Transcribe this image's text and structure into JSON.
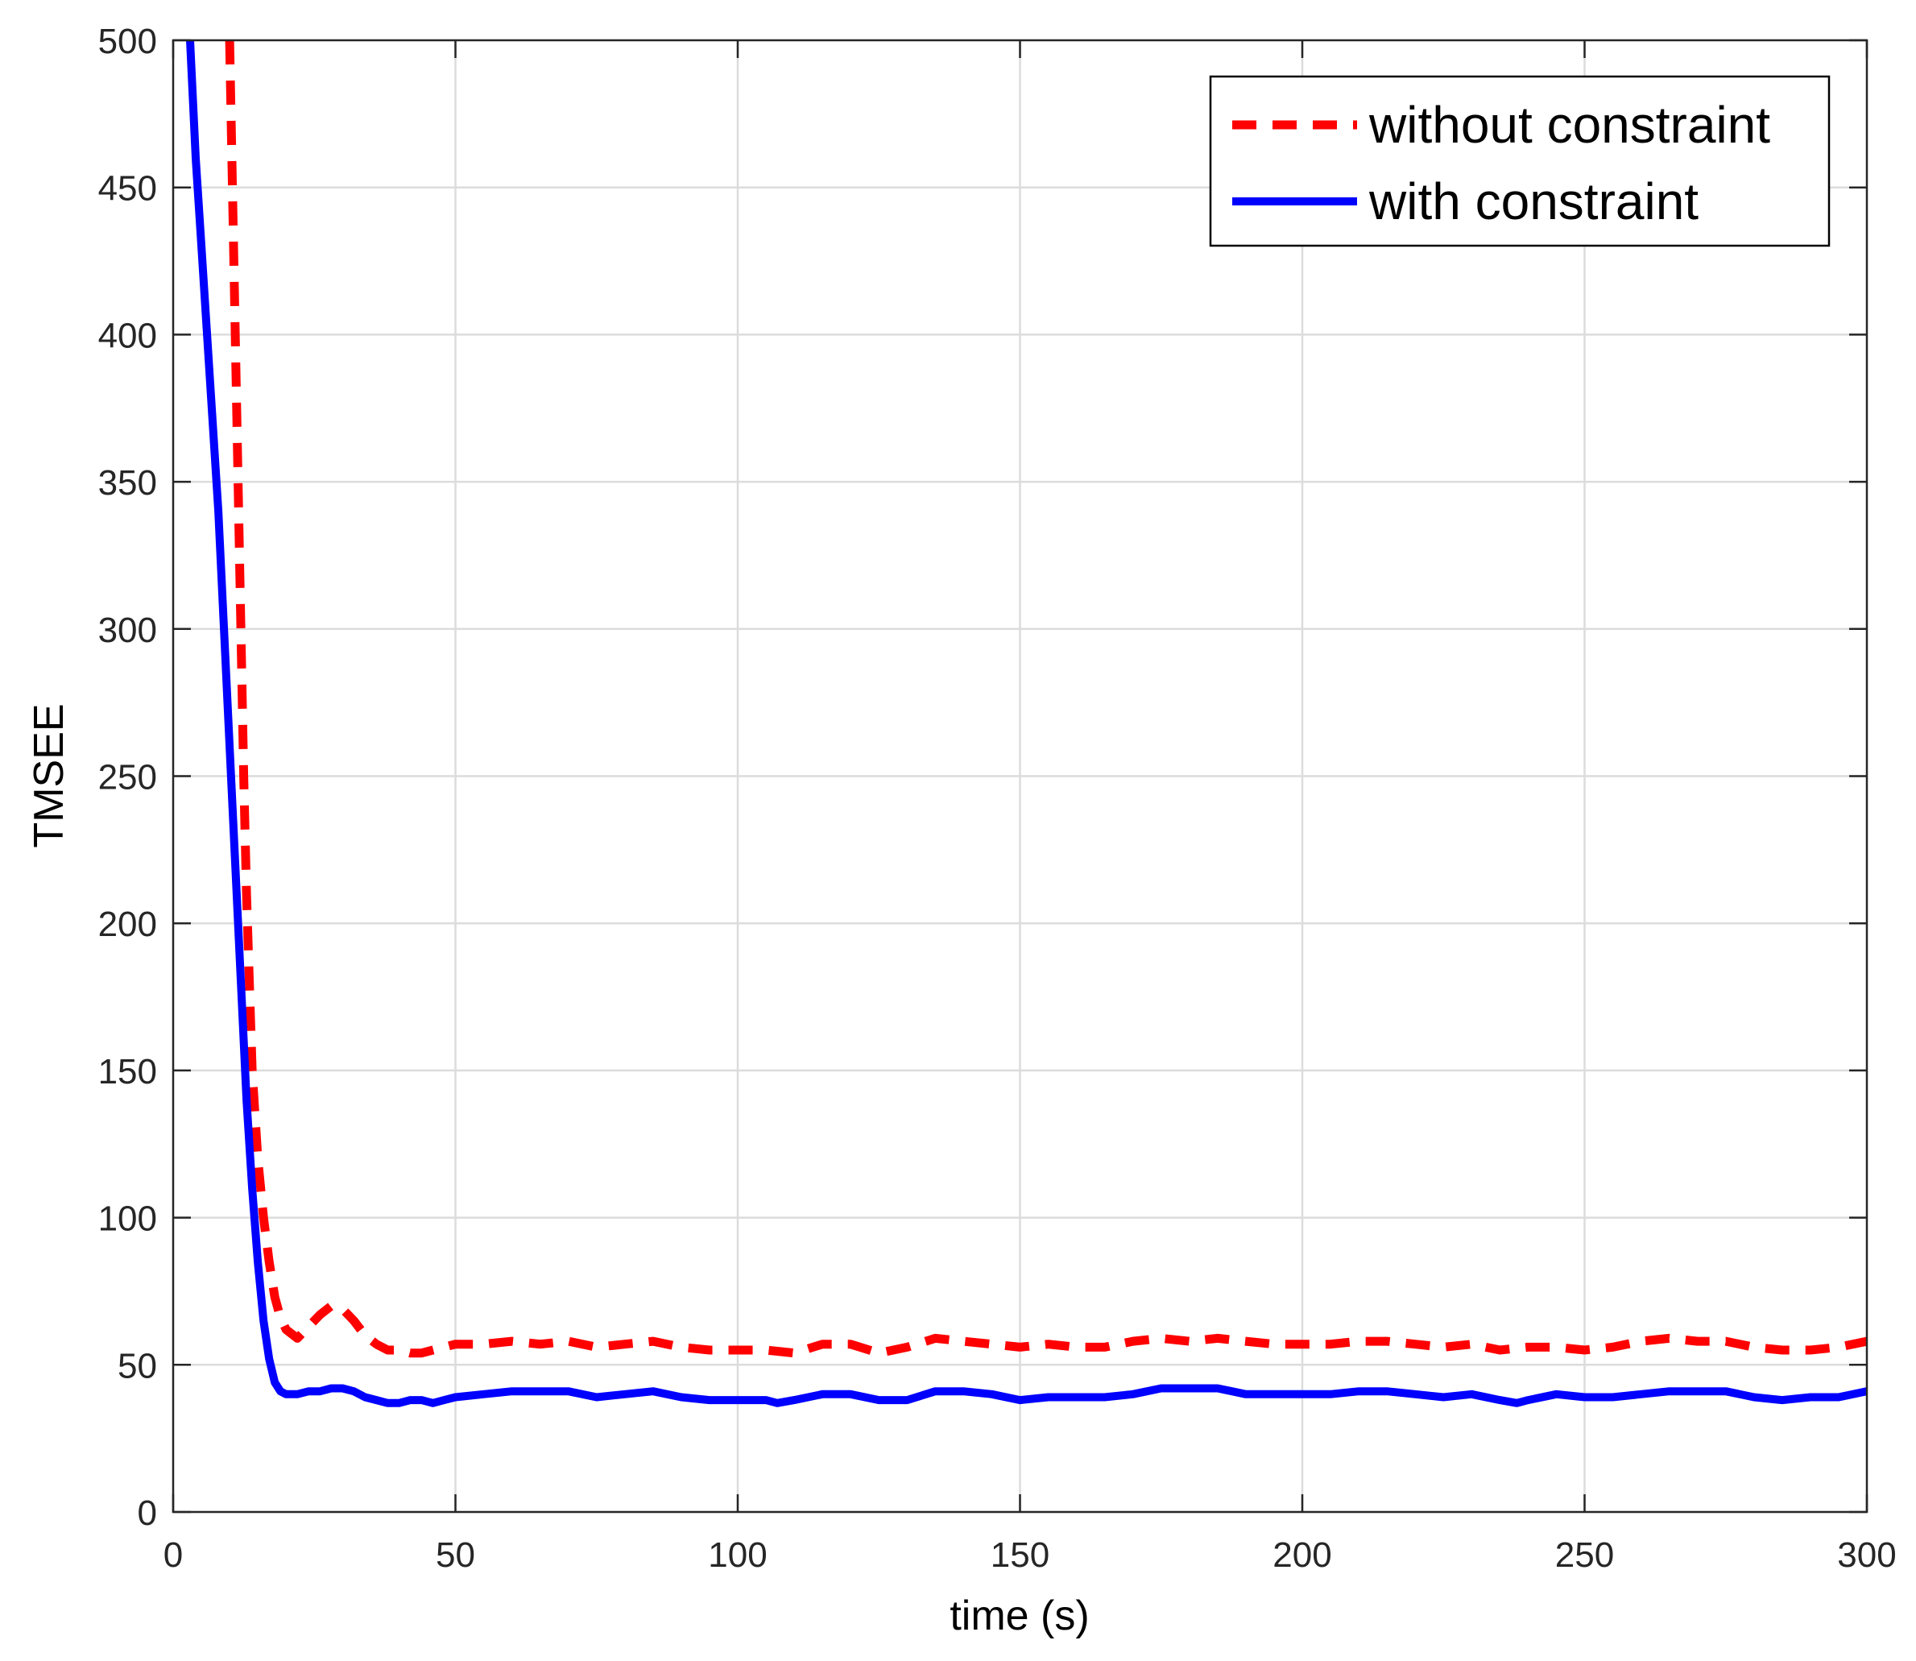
{
  "chart_data": {
    "type": "line",
    "title": "",
    "xlabel": "time (s)",
    "ylabel": "TMSEE",
    "xlim": [
      0,
      300
    ],
    "ylim": [
      0,
      500
    ],
    "xticks": [
      0,
      50,
      100,
      150,
      200,
      250,
      300
    ],
    "yticks": [
      0,
      50,
      100,
      150,
      200,
      250,
      300,
      350,
      400,
      450,
      500
    ],
    "xtick_labels": [
      "0",
      "50",
      "100",
      "150",
      "200",
      "250",
      "300"
    ],
    "ytick_labels": [
      "0",
      "50",
      "100",
      "150",
      "200",
      "250",
      "300",
      "350",
      "400",
      "450",
      "500"
    ],
    "grid": true,
    "legend_position": "top-right",
    "series": [
      {
        "name": "without constraint",
        "color": "#ff0000",
        "style": "dashed",
        "x": [
          10,
          10.5,
          11,
          11.5,
          12,
          12.5,
          13,
          13.5,
          14,
          15,
          16,
          17,
          18,
          19,
          20,
          22,
          24,
          26,
          28,
          30,
          32,
          34,
          36,
          38,
          40,
          42,
          44,
          46,
          48,
          50,
          55,
          60,
          65,
          70,
          75,
          80,
          85,
          90,
          95,
          100,
          105,
          110,
          115,
          120,
          125,
          130,
          135,
          140,
          145,
          150,
          155,
          160,
          165,
          170,
          175,
          180,
          185,
          190,
          195,
          200,
          205,
          210,
          215,
          220,
          225,
          230,
          235,
          240,
          245,
          250,
          255,
          260,
          265,
          270,
          275,
          280,
          285,
          290,
          295,
          300
        ],
        "values": [
          500,
          450,
          400,
          350,
          300,
          250,
          210,
          180,
          150,
          120,
          100,
          85,
          73,
          66,
          62,
          59,
          63,
          67,
          70,
          69,
          65,
          60,
          57,
          55,
          55,
          54,
          54,
          55,
          56,
          57,
          57,
          58,
          57,
          58,
          56,
          57,
          58,
          56,
          55,
          55,
          55,
          54,
          57,
          57,
          54,
          56,
          59,
          58,
          57,
          56,
          57,
          56,
          56,
          58,
          59,
          58,
          59,
          58,
          57,
          57,
          57,
          58,
          58,
          57,
          56,
          57,
          55,
          56,
          56,
          55,
          56,
          58,
          59,
          58,
          58,
          56,
          55,
          55,
          56,
          58
        ]
      },
      {
        "name": "with constraint",
        "color": "#0000ff",
        "style": "solid",
        "x": [
          3,
          4,
          5,
          6,
          7,
          8,
          9,
          10,
          11,
          12,
          13,
          14,
          15,
          16,
          17,
          18,
          19,
          20,
          22,
          24,
          26,
          28,
          30,
          32,
          34,
          36,
          38,
          40,
          42,
          44,
          46,
          48,
          50,
          55,
          60,
          65,
          70,
          75,
          80,
          85,
          90,
          95,
          100,
          105,
          107,
          110,
          115,
          120,
          125,
          130,
          135,
          140,
          145,
          150,
          155,
          160,
          165,
          170,
          175,
          180,
          185,
          190,
          195,
          200,
          205,
          210,
          215,
          220,
          225,
          230,
          235,
          238,
          240,
          245,
          250,
          255,
          260,
          265,
          270,
          275,
          280,
          285,
          290,
          295,
          300
        ],
        "values": [
          500,
          460,
          430,
          400,
          370,
          340,
          300,
          260,
          220,
          180,
          140,
          110,
          85,
          65,
          52,
          44,
          41,
          40,
          40,
          41,
          41,
          42,
          42,
          41,
          39,
          38,
          37,
          37,
          38,
          38,
          37,
          38,
          39,
          40,
          41,
          41,
          41,
          39,
          40,
          41,
          39,
          38,
          38,
          38,
          37,
          38,
          40,
          40,
          38,
          38,
          41,
          41,
          40,
          38,
          39,
          39,
          39,
          40,
          42,
          42,
          42,
          40,
          40,
          40,
          40,
          41,
          41,
          40,
          39,
          40,
          38,
          37,
          38,
          40,
          39,
          39,
          40,
          41,
          41,
          41,
          39,
          38,
          39,
          39,
          41
        ]
      }
    ]
  }
}
